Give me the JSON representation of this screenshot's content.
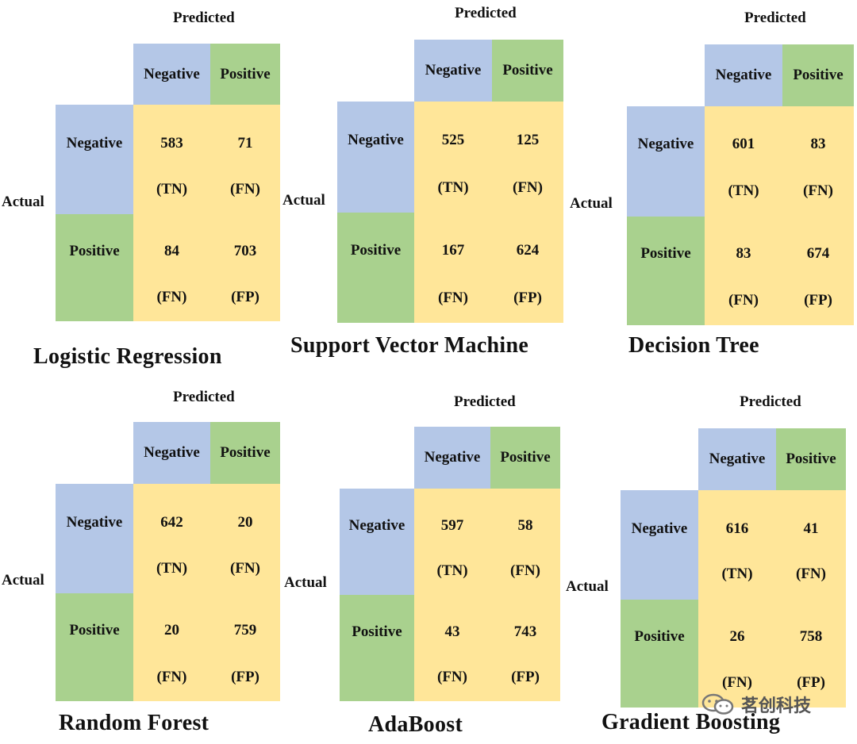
{
  "matrices": [
    {
      "title": "Logistic Regression",
      "predicted_label": "Predicted",
      "actual_label": "Actual",
      "col_headers": [
        "Negative",
        "Positive"
      ],
      "row_headers": [
        "Negative",
        "Positive"
      ],
      "cells": [
        [
          {
            "value": "583",
            "tag": "(TN)"
          },
          {
            "value": "71",
            "tag": "(FN)"
          }
        ],
        [
          {
            "value": "84",
            "tag": "(FN)"
          },
          {
            "value": "703",
            "tag": "(FP)"
          }
        ]
      ]
    },
    {
      "title": "Support Vector Machine",
      "predicted_label": "Predicted",
      "actual_label": "Actual",
      "col_headers": [
        "Negative",
        "Positive"
      ],
      "row_headers": [
        "Negative",
        "Positive"
      ],
      "cells": [
        [
          {
            "value": "525",
            "tag": "(TN)"
          },
          {
            "value": "125",
            "tag": "(FN)"
          }
        ],
        [
          {
            "value": "167",
            "tag": "(FN)"
          },
          {
            "value": "624",
            "tag": "(FP)"
          }
        ]
      ]
    },
    {
      "title": "Decision Tree",
      "predicted_label": "Predicted",
      "actual_label": "Actual",
      "col_headers": [
        "Negative",
        "Positive"
      ],
      "row_headers": [
        "Negative",
        "Positive"
      ],
      "cells": [
        [
          {
            "value": "601",
            "tag": "(TN)"
          },
          {
            "value": "83",
            "tag": "(FN)"
          }
        ],
        [
          {
            "value": "83",
            "tag": "(FN)"
          },
          {
            "value": "674",
            "tag": "(FP)"
          }
        ]
      ]
    },
    {
      "title": "Random  Forest",
      "predicted_label": "Predicted",
      "actual_label": "Actual",
      "col_headers": [
        "Negative",
        "Positive"
      ],
      "row_headers": [
        "Negative",
        "Positive"
      ],
      "cells": [
        [
          {
            "value": "642",
            "tag": "(TN)"
          },
          {
            "value": "20",
            "tag": "(FN)"
          }
        ],
        [
          {
            "value": "20",
            "tag": "(FN)"
          },
          {
            "value": "759",
            "tag": "(FP)"
          }
        ]
      ]
    },
    {
      "title": "AdaBoost",
      "predicted_label": "Predicted",
      "actual_label": "Actual",
      "col_headers": [
        "Negative",
        "Positive"
      ],
      "row_headers": [
        "Negative",
        "Positive"
      ],
      "cells": [
        [
          {
            "value": "597",
            "tag": "(TN)"
          },
          {
            "value": "58",
            "tag": "(FN)"
          }
        ],
        [
          {
            "value": "43",
            "tag": "(FN)"
          },
          {
            "value": "743",
            "tag": "(FP)"
          }
        ]
      ]
    },
    {
      "title": "Gradient Boosting",
      "predicted_label": "Predicted",
      "actual_label": "Actual",
      "col_headers": [
        "Negative",
        "Positive"
      ],
      "row_headers": [
        "Negative",
        "Positive"
      ],
      "cells": [
        [
          {
            "value": "616",
            "tag": "(TN)"
          },
          {
            "value": "41",
            "tag": "(FN)"
          }
        ],
        [
          {
            "value": "26",
            "tag": "(FN)"
          },
          {
            "value": "758",
            "tag": "(FP)"
          }
        ]
      ]
    }
  ],
  "watermark": {
    "text": "茗创科技",
    "icon": "wechat-icon"
  },
  "colors": {
    "header_blue": "#b4c7e7",
    "header_green": "#a9d18e",
    "body_yellow": "#ffe699"
  }
}
